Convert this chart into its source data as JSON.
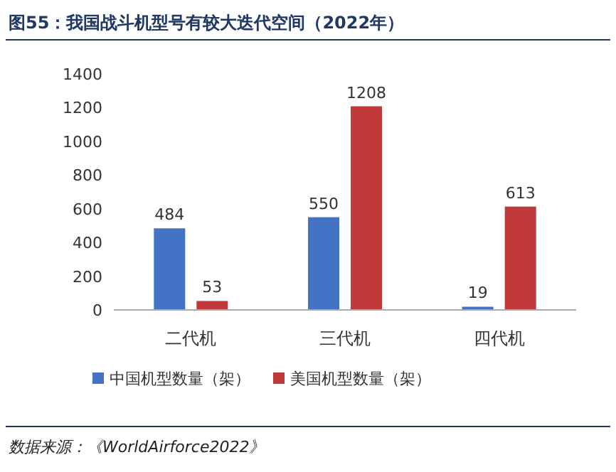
{
  "chart_data": {
    "type": "bar",
    "title": "图55：我国战斗机型号有较大迭代空间（2022年）",
    "categories": [
      "二代机",
      "三代机",
      "四代机"
    ],
    "series": [
      {
        "name": "中国机型数量（架）",
        "color": "#4472c4",
        "values": [
          484,
          550,
          19
        ]
      },
      {
        "name": "美国机型数量（架）",
        "color": "#c0393b",
        "values": [
          53,
          1208,
          613
        ]
      }
    ],
    "ylim": [
      0,
      1400
    ],
    "yticks": [
      0,
      200,
      400,
      600,
      800,
      1000,
      1200,
      1400
    ],
    "legend": "bottom",
    "data_labels": true,
    "annotations": [
      "数据来源：《WorldAirforce2022》"
    ]
  }
}
